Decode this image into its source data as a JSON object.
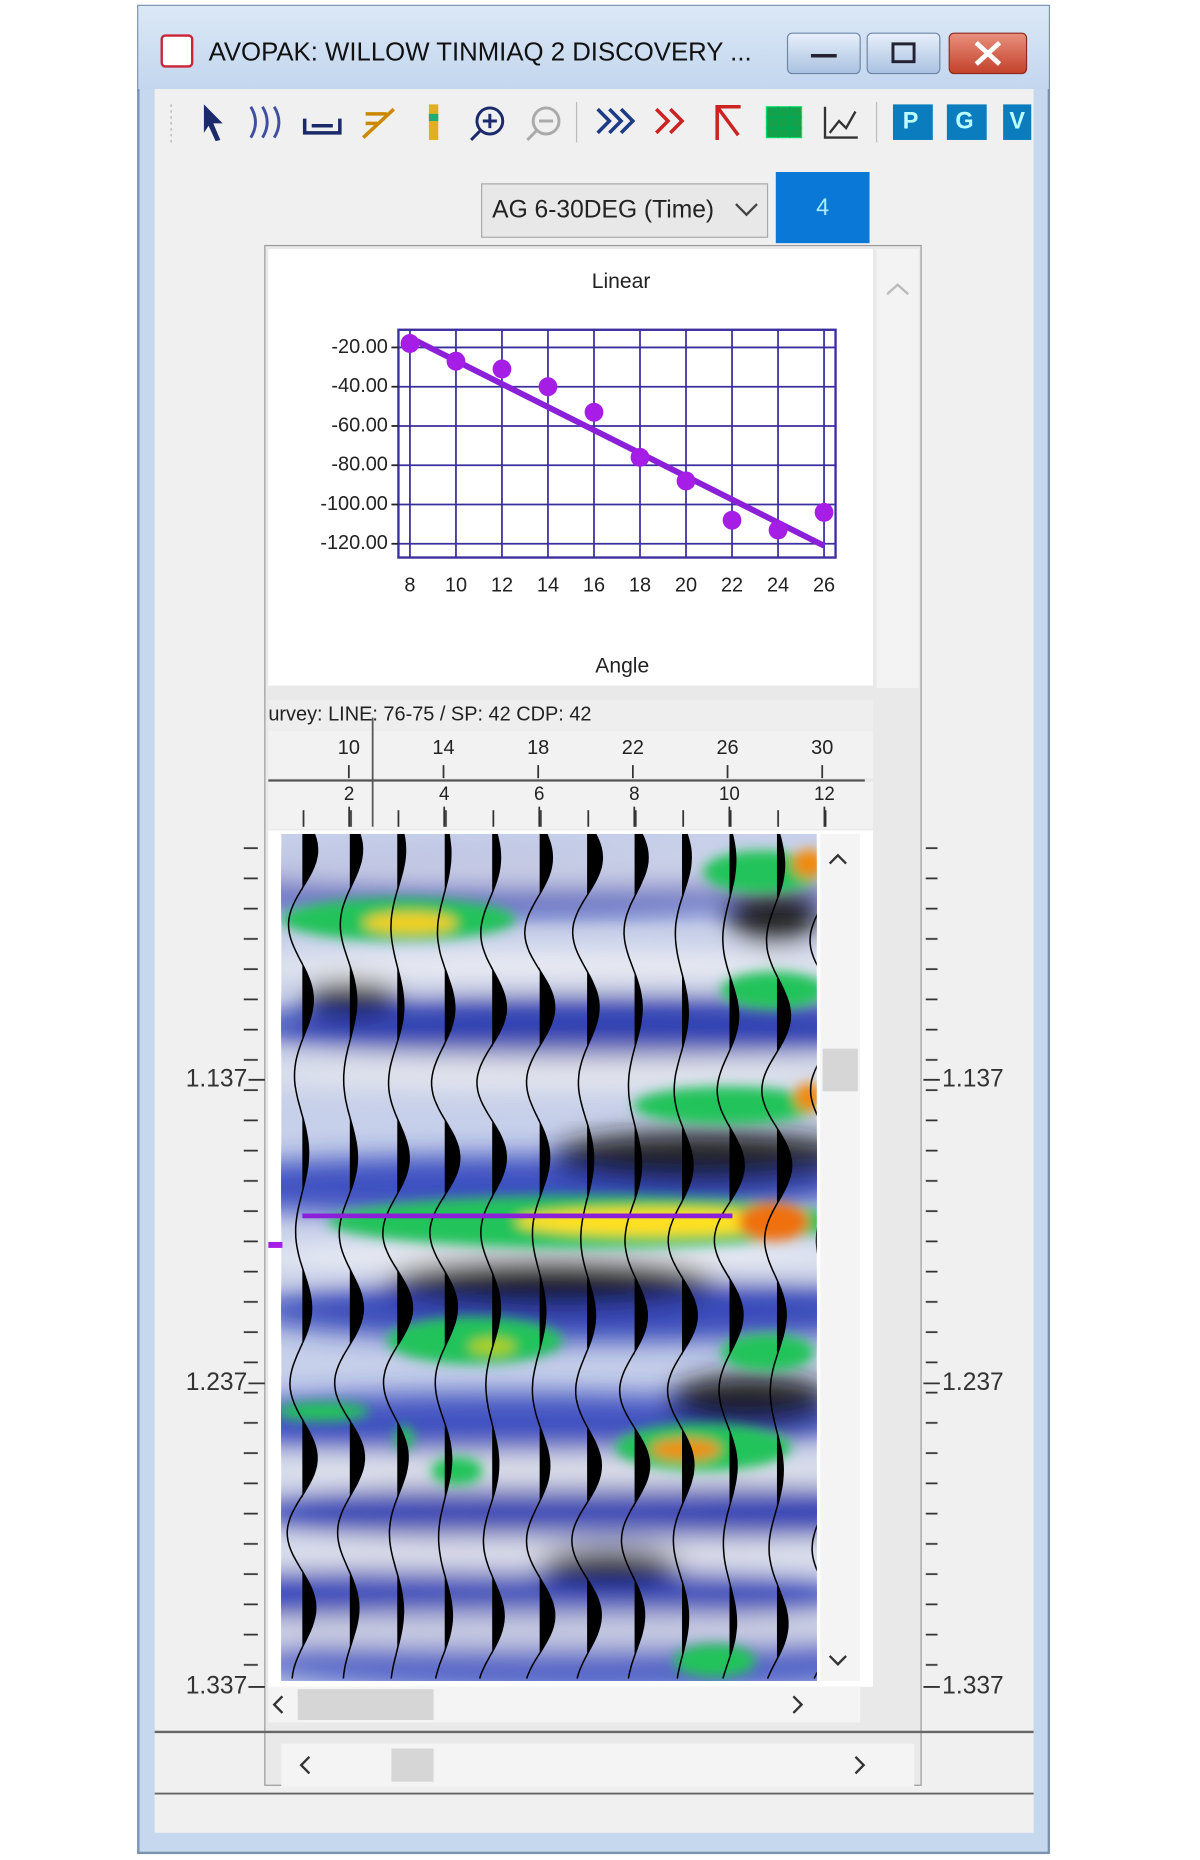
{
  "window": {
    "title": "AVOPAK: WILLOW TINMIAQ 2 DISCOVERY ..."
  },
  "toolbar": {
    "badges": [
      "P",
      "G",
      "V"
    ]
  },
  "controls": {
    "gather": "AG 6-30DEG (Time)",
    "page": "4"
  },
  "chart_data": {
    "type": "scatter",
    "title": "Linear",
    "x_label": "Angle",
    "x": [
      8,
      10,
      12,
      14,
      16,
      18,
      20,
      22,
      24,
      26
    ],
    "values": [
      -18,
      -27,
      -31,
      -40,
      -53,
      -76,
      -88,
      -108,
      -113,
      -104
    ],
    "color": "#a61ee6",
    "trend": {
      "x": [
        8,
        26
      ],
      "values": [
        -15,
        -121
      ],
      "color": "#8c1fd8"
    },
    "xlim": [
      7.5,
      26.5
    ],
    "ylim": [
      -127,
      -11
    ],
    "xticks": [
      8,
      10,
      12,
      14,
      16,
      18,
      20,
      22,
      24,
      26
    ],
    "yticks": [
      {
        "value": -20,
        "label": "-20.00"
      },
      {
        "value": -40,
        "label": "-40.00"
      },
      {
        "value": -60,
        "label": "-60.00"
      },
      {
        "value": -80,
        "label": "-80.00"
      },
      {
        "value": -100,
        "label": "-100.00"
      },
      {
        "value": -120,
        "label": "-120.00"
      }
    ],
    "grid": true,
    "grid_color": "#3b2f9e"
  },
  "seismic": {
    "header": "urvey: LINE: 76-75 / SP: 42 CDP: 42",
    "angle_lim": [
      6.6,
      31.9
    ],
    "angle_ticks": [
      10,
      14,
      18,
      22,
      26,
      30
    ],
    "trace_lim": [
      0.3,
      12.9
    ],
    "trace_ticks": [
      2,
      4,
      6,
      8,
      10,
      12
    ],
    "time_lim": [
      1.056,
      1.335
    ],
    "time_ticks": [
      1.137,
      1.237,
      1.337
    ]
  }
}
